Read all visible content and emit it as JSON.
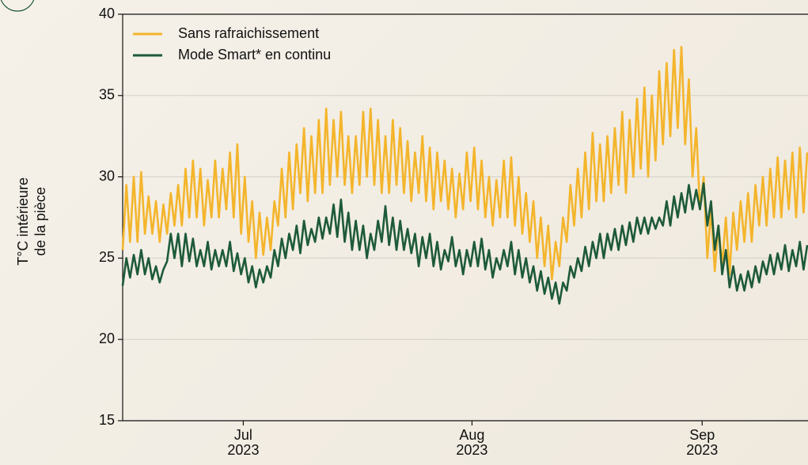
{
  "chart_data": {
    "type": "line",
    "ylabel": "T°C intérieure\nde la pièce",
    "legend": "upper left",
    "grid": true,
    "xlim": [
      0,
      92.6
    ],
    "xticks": [
      {
        "value": 16.3,
        "label": "Jul\n2023"
      },
      {
        "value": 47.2,
        "label": "Aug\n2023"
      },
      {
        "value": 78.3,
        "label": "Sep\n2023"
      }
    ],
    "ylim": [
      15,
      40
    ],
    "yticks": [
      15,
      20,
      25,
      30,
      35,
      40
    ],
    "x": [
      0,
      0.5,
      1,
      1.5,
      2,
      2.5,
      3,
      3.5,
      4,
      4.5,
      5,
      5.5,
      6,
      6.5,
      7,
      7.5,
      8,
      8.5,
      9,
      9.5,
      10,
      10.5,
      11,
      11.5,
      12,
      12.5,
      13,
      13.5,
      14,
      14.5,
      15,
      15.5,
      16,
      16.5,
      17,
      17.5,
      18,
      18.5,
      19,
      19.5,
      20,
      20.5,
      21,
      21.5,
      22,
      22.5,
      23,
      23.5,
      24,
      24.5,
      25,
      25.5,
      26,
      26.5,
      27,
      27.5,
      28,
      28.5,
      29,
      29.5,
      30,
      30.5,
      31,
      31.5,
      32,
      32.5,
      33,
      33.5,
      34,
      34.5,
      35,
      35.5,
      36,
      36.5,
      37,
      37.5,
      38,
      38.5,
      39,
      39.5,
      40,
      40.5,
      41,
      41.5,
      42,
      42.5,
      43,
      43.5,
      44,
      44.5,
      45,
      45.5,
      46,
      46.5,
      47,
      47.5,
      48,
      48.5,
      49,
      49.5,
      50,
      50.5,
      51,
      51.5,
      52,
      52.5,
      53,
      53.5,
      54,
      54.5,
      55,
      55.5,
      56,
      56.5,
      57,
      57.5,
      58,
      58.5,
      59,
      59.5,
      60,
      60.5,
      61,
      61.5,
      62,
      62.5,
      63,
      63.5,
      64,
      64.5,
      65,
      65.5,
      66,
      66.5,
      67,
      67.5,
      68,
      68.5,
      69,
      69.5,
      70,
      70.5,
      71,
      71.5,
      72,
      72.5,
      73,
      73.5,
      74,
      74.5,
      75,
      75.5,
      76,
      76.5,
      77,
      77.5,
      78,
      78.5,
      79,
      79.5,
      80,
      80.5,
      81,
      81.5,
      82,
      82.5,
      83,
      83.5,
      84,
      84.5,
      85,
      85.5,
      86,
      86.5,
      87,
      87.5,
      88,
      88.5,
      89,
      89.5,
      90,
      90.5,
      91,
      91.5,
      92,
      92.5
    ],
    "series": [
      {
        "name": "Sans rafraichissement",
        "color": "#f4b52c",
        "values": [
          25.5,
          29.5,
          26,
          30,
          26,
          30.3,
          26.5,
          28.8,
          26.5,
          28.5,
          26,
          28.3,
          26.5,
          29,
          27,
          29.5,
          27,
          30.5,
          27.5,
          31,
          27.5,
          30.5,
          27,
          29.8,
          27.5,
          31,
          27.5,
          30.5,
          28,
          31.5,
          27.5,
          32,
          26.5,
          30,
          26,
          28.5,
          25,
          27.8,
          25.2,
          27.5,
          25.5,
          28.5,
          27,
          30.5,
          27.5,
          31.5,
          28,
          32,
          29,
          33,
          28.5,
          32.5,
          29,
          33.5,
          29,
          34.2,
          29.5,
          33.5,
          30,
          34,
          29.5,
          32.5,
          29,
          32.5,
          29.5,
          34,
          30,
          34.2,
          29.5,
          33.5,
          29,
          32.5,
          29,
          33.5,
          29.5,
          33,
          29,
          32.2,
          28.5,
          31.5,
          29,
          32.5,
          28.5,
          31.8,
          28,
          31.5,
          28.5,
          31,
          28,
          30.5,
          27.5,
          30.2,
          28,
          31.5,
          28.5,
          31.8,
          28,
          31,
          27.5,
          30,
          27,
          29.8,
          27.5,
          31,
          27.5,
          31.2,
          27,
          30,
          26.5,
          29,
          26,
          28.5,
          25,
          27.5,
          24.5,
          27,
          23.7,
          26,
          24.5,
          27.5,
          26,
          29.5,
          27,
          30.5,
          27.5,
          31.5,
          28,
          32.7,
          28.5,
          32,
          28.5,
          32.5,
          29,
          33,
          29.5,
          34,
          29,
          33.5,
          30,
          34.8,
          30.5,
          35.5,
          30,
          35,
          31,
          36.5,
          32,
          37,
          32.5,
          37.8,
          33,
          38,
          32,
          36,
          30,
          33,
          28,
          30,
          25,
          28,
          24.2,
          27,
          24.5,
          27.5,
          24,
          27.8,
          25.5,
          28.5,
          26,
          29,
          26,
          29.5,
          27,
          30,
          27,
          30.5,
          27.5,
          31.2,
          27.5,
          31,
          28,
          31.5,
          27.5,
          31.8,
          27.8,
          31.5
        ]
      },
      {
        "name": "Mode Smart* en continu",
        "color": "#1d5a3a",
        "values": [
          23.3,
          25,
          23.8,
          25.2,
          24,
          25.5,
          24,
          25,
          23.7,
          24.5,
          23.5,
          24.3,
          24.8,
          26.5,
          25,
          26.5,
          24.5,
          26.5,
          24.8,
          26.2,
          24.5,
          25.5,
          24.5,
          26,
          24.3,
          25.5,
          24.5,
          25.5,
          24.5,
          26,
          24.2,
          25.3,
          24,
          25,
          23.5,
          24.5,
          23.2,
          24.3,
          23.5,
          24.5,
          23.8,
          25.5,
          24.5,
          26.2,
          25,
          26.5,
          25.5,
          27,
          25.3,
          27.3,
          25.8,
          26.8,
          26,
          27.5,
          26.2,
          27.5,
          26.5,
          28.3,
          26.3,
          28.6,
          26,
          27.8,
          25.5,
          27.3,
          25.5,
          27,
          25,
          26.5,
          25.5,
          27.3,
          26,
          28.2,
          25.8,
          27.5,
          25.5,
          27.3,
          25.5,
          26.8,
          25.3,
          26.5,
          24.5,
          26.3,
          25,
          26.5,
          24.5,
          26,
          24.3,
          25.5,
          24.8,
          26.3,
          24.5,
          25.5,
          24,
          25.5,
          24.5,
          26,
          24.5,
          26.2,
          24.3,
          25.5,
          23.8,
          25,
          24.3,
          25.5,
          24.5,
          26,
          24,
          25.5,
          23.8,
          25,
          23.5,
          24.5,
          23,
          24.2,
          22.8,
          23.8,
          22.5,
          23.5,
          22.2,
          23.5,
          23,
          24.5,
          23.8,
          25,
          24.2,
          25.7,
          24.5,
          26,
          25,
          26.5,
          25,
          26.5,
          25.5,
          26.8,
          25.5,
          27,
          25.8,
          27.2,
          26,
          27.5,
          26.5,
          27.5,
          26.5,
          27.5,
          26.8,
          27.5,
          27,
          28.5,
          27,
          28.8,
          27.5,
          29,
          27.8,
          29.5,
          28,
          29.2,
          28,
          29.6,
          27,
          28.5,
          25.5,
          27,
          24,
          25.5,
          23.2,
          24.5,
          23,
          24,
          23,
          24.2,
          23.2,
          24.5,
          23.5,
          24.8,
          24,
          25.2,
          24,
          25.3,
          24.3,
          25.8,
          24.2,
          25.5,
          24.5,
          26,
          24.3,
          25.8
        ]
      }
    ]
  }
}
